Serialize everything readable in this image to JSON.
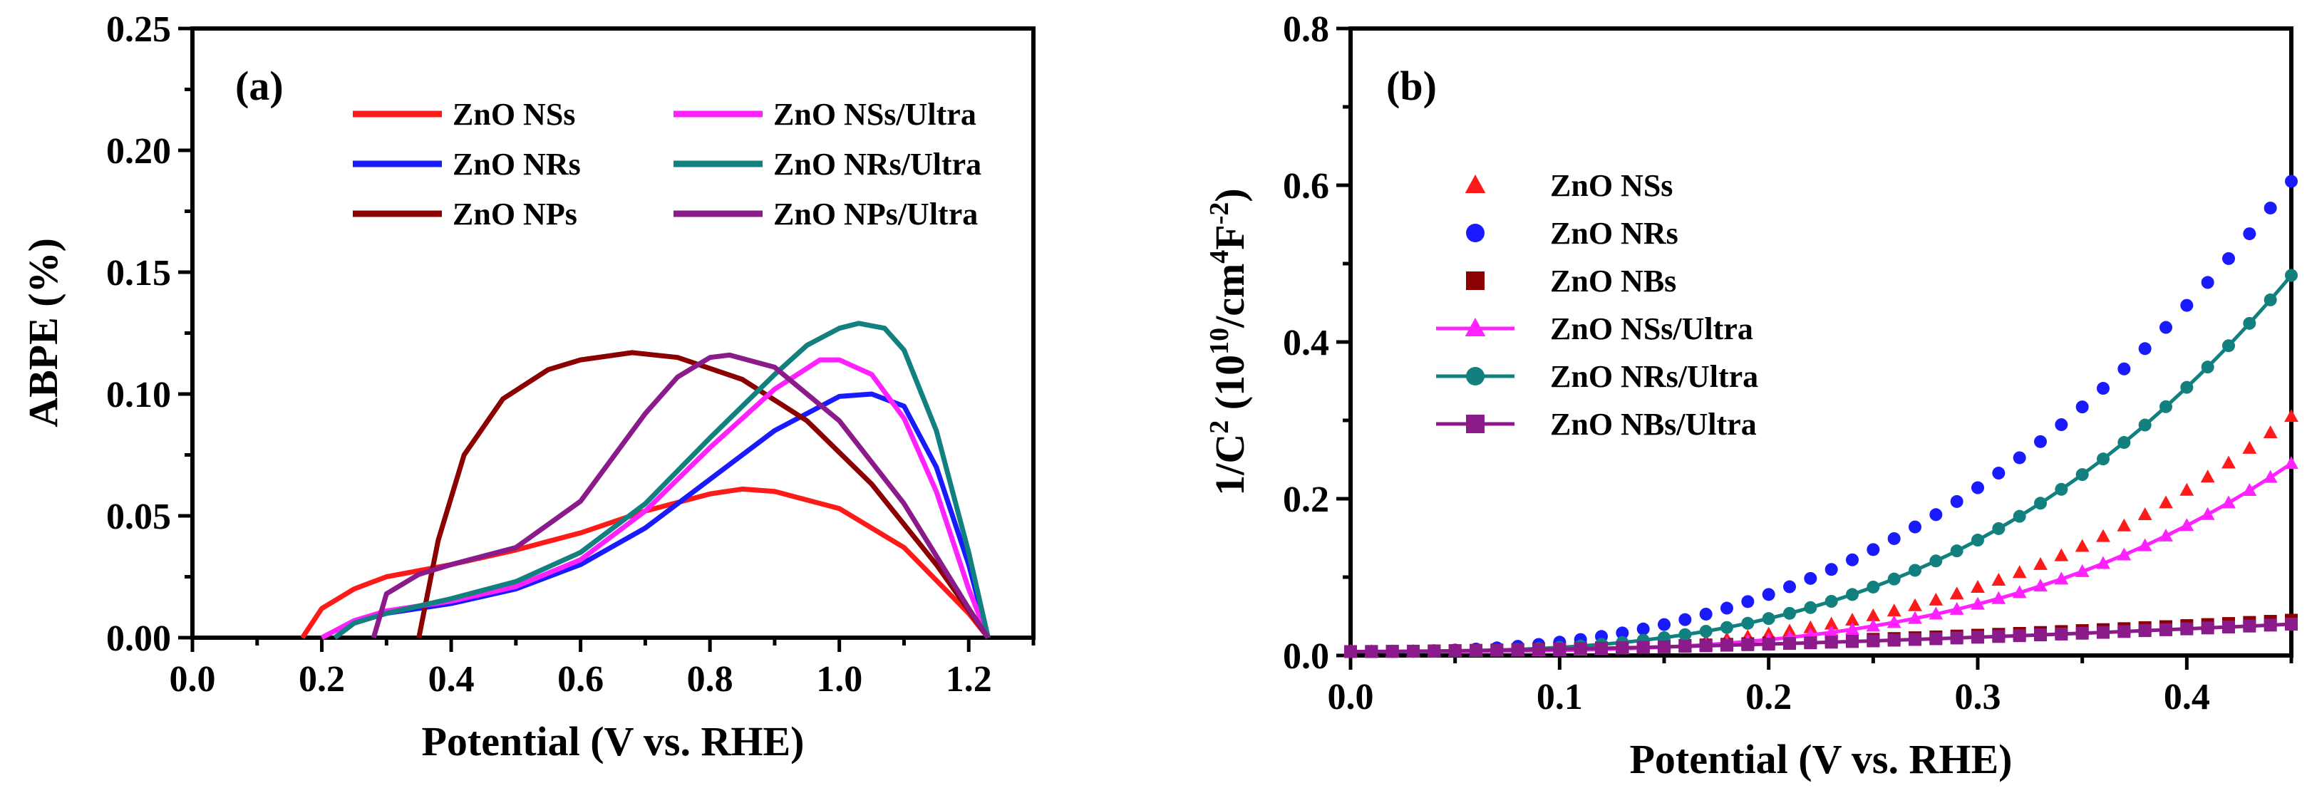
{
  "chart_data": [
    {
      "type": "line",
      "panel_label": "(a)",
      "xlabel": "Potential (V vs. RHE)",
      "ylabel": "ABPE (%)",
      "xlim": [
        0.0,
        1.3
      ],
      "ylim": [
        0.0,
        0.25
      ],
      "x_ticks": [
        "0.0",
        "0.2",
        "0.4",
        "0.6",
        "0.8",
        "1.0",
        "1.2"
      ],
      "y_ticks": [
        "0.00",
        "0.05",
        "0.10",
        "0.15",
        "0.20",
        "0.25"
      ],
      "legend_position": "top",
      "series": [
        {
          "name": "ZnO NSs",
          "color": "#ff1a1a",
          "marker": "none",
          "x": [
            0.17,
            0.2,
            0.25,
            0.3,
            0.4,
            0.5,
            0.6,
            0.7,
            0.8,
            0.85,
            0.9,
            1.0,
            1.1,
            1.2,
            1.23
          ],
          "y": [
            0.0,
            0.012,
            0.02,
            0.025,
            0.03,
            0.036,
            0.043,
            0.052,
            0.059,
            0.061,
            0.06,
            0.053,
            0.037,
            0.01,
            0.0
          ]
        },
        {
          "name": "ZnO NRs",
          "color": "#1a1aff",
          "marker": "none",
          "x": [
            0.22,
            0.25,
            0.3,
            0.4,
            0.5,
            0.6,
            0.7,
            0.8,
            0.9,
            1.0,
            1.05,
            1.1,
            1.15,
            1.2,
            1.23
          ],
          "y": [
            0.0,
            0.006,
            0.01,
            0.014,
            0.02,
            0.03,
            0.045,
            0.065,
            0.085,
            0.099,
            0.1,
            0.095,
            0.07,
            0.03,
            0.0
          ]
        },
        {
          "name": "ZnO NPs",
          "color": "#8b0000",
          "marker": "none",
          "x": [
            0.35,
            0.38,
            0.42,
            0.48,
            0.55,
            0.6,
            0.68,
            0.75,
            0.85,
            0.95,
            1.05,
            1.15,
            1.23
          ],
          "y": [
            0.0,
            0.04,
            0.075,
            0.098,
            0.11,
            0.114,
            0.117,
            0.115,
            0.106,
            0.089,
            0.063,
            0.03,
            0.0
          ]
        },
        {
          "name": "ZnO NSs/Ultra",
          "color": "#ff22ff",
          "marker": "none",
          "x": [
            0.2,
            0.25,
            0.3,
            0.4,
            0.5,
            0.6,
            0.7,
            0.8,
            0.9,
            0.97,
            1.0,
            1.05,
            1.1,
            1.15,
            1.2,
            1.23
          ],
          "y": [
            0.0,
            0.007,
            0.011,
            0.015,
            0.021,
            0.032,
            0.052,
            0.078,
            0.102,
            0.114,
            0.114,
            0.108,
            0.09,
            0.06,
            0.02,
            0.0
          ]
        },
        {
          "name": "ZnO NRs/Ultra",
          "color": "#138080",
          "marker": "none",
          "x": [
            0.22,
            0.25,
            0.3,
            0.4,
            0.5,
            0.6,
            0.7,
            0.8,
            0.9,
            0.95,
            1.0,
            1.03,
            1.07,
            1.1,
            1.15,
            1.2,
            1.23
          ],
          "y": [
            0.0,
            0.006,
            0.01,
            0.016,
            0.023,
            0.035,
            0.055,
            0.082,
            0.108,
            0.12,
            0.127,
            0.129,
            0.127,
            0.118,
            0.085,
            0.035,
            0.0
          ]
        },
        {
          "name": "ZnO NPs/Ultra",
          "color": "#8b1a8b",
          "marker": "none",
          "x": [
            0.28,
            0.3,
            0.35,
            0.4,
            0.5,
            0.6,
            0.7,
            0.75,
            0.8,
            0.83,
            0.9,
            1.0,
            1.1,
            1.2,
            1.23
          ],
          "y": [
            0.0,
            0.018,
            0.026,
            0.03,
            0.037,
            0.056,
            0.092,
            0.107,
            0.115,
            0.116,
            0.111,
            0.089,
            0.055,
            0.012,
            0.0
          ]
        }
      ]
    },
    {
      "type": "scatter",
      "panel_label": "(b)",
      "xlabel": "Potential (V vs. RHE)",
      "ylabel_prefix": "1/C",
      "ylabel_sup1": "2",
      "ylabel_mid": " (10",
      "ylabel_sup2": "10",
      "ylabel_mid2": "/cm",
      "ylabel_sup3": "4",
      "ylabel_mid3": "F",
      "ylabel_sup4": "-2",
      "ylabel_end": ")",
      "xlim": [
        0.0,
        0.45
      ],
      "ylim": [
        0.0,
        0.8
      ],
      "x_ticks": [
        "0.0",
        "0.1",
        "0.2",
        "0.3",
        "0.4"
      ],
      "y_ticks": [
        "0.0",
        "0.2",
        "0.4",
        "0.6",
        "0.8"
      ],
      "legend_position": "top-left",
      "series": [
        {
          "name": "ZnO NSs",
          "color": "#ff1a1a",
          "marker": "triangle",
          "line": false,
          "curve": [
            0.005,
            0.3,
            3.2
          ]
        },
        {
          "name": "ZnO NRs",
          "color": "#1a1aff",
          "marker": "circle",
          "line": false,
          "curve": [
            0.005,
            0.6,
            2.6
          ]
        },
        {
          "name": "ZnO NBs",
          "color": "#8b0000",
          "marker": "square",
          "line": false,
          "curve": [
            0.005,
            0.04,
            1.6
          ]
        },
        {
          "name": "ZnO NSs/Ultra",
          "color": "#ff22ff",
          "marker": "triangle",
          "line": true,
          "curve": [
            0.005,
            0.24,
            3.4
          ]
        },
        {
          "name": "ZnO NRs/Ultra",
          "color": "#138080",
          "marker": "circle",
          "line": true,
          "curve": [
            0.005,
            0.48,
            3.0
          ]
        },
        {
          "name": "ZnO NBs/Ultra",
          "color": "#8b1a8b",
          "marker": "square",
          "line": true,
          "curve": [
            0.005,
            0.035,
            1.6
          ]
        }
      ]
    }
  ]
}
